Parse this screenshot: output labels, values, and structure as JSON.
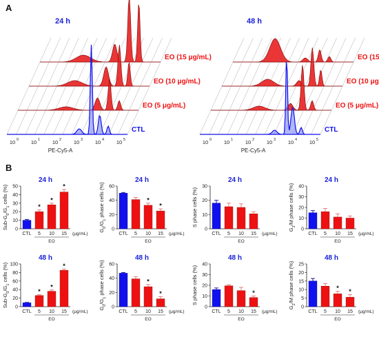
{
  "colors": {
    "ctl": "#1111ee",
    "eo": "#ee1111",
    "eo_fill": "#e82020",
    "dark": "#2a2a2a",
    "title_blue": "#1a22d8",
    "grid": "#aaaaaa"
  },
  "panels": {
    "a": "A",
    "b": "B"
  },
  "flow": {
    "xlabel": "PE-Cy5-A",
    "tick_labels": [
      "10",
      "10",
      "10",
      "10",
      "10",
      "10"
    ],
    "tick_exponents": [
      "0",
      "1",
      "2",
      "3",
      "4",
      "5"
    ],
    "left": {
      "time": "24 h",
      "labels": [
        "EO (15 μg/mL)",
        "EO (10 μg/mL)",
        "EO (5 μg/mL)",
        "CTL"
      ]
    },
    "right": {
      "time": "48 h",
      "labels": [
        "EO (15 μg/mL)",
        "EO (10 μg/mL)",
        "EO (5 μg/mL)",
        "CTL"
      ]
    }
  },
  "bar_common": {
    "categories": [
      "CTL",
      "5",
      "10",
      "15"
    ],
    "unit_label": "(μg/mL)",
    "group_label": "EO",
    "star": "*"
  },
  "chart_data": [
    {
      "type": "bar",
      "title": "24 h",
      "ylabel": "Sub-G0/G1 cells (%)",
      "ylabel_parts": [
        "Sub-G",
        "0",
        "/G",
        "1",
        " cells (%)"
      ],
      "ylim": [
        0,
        50
      ],
      "yticks": [
        "0",
        "10",
        "20",
        "30",
        "40",
        "50"
      ],
      "categories": [
        "CTL",
        "5",
        "10",
        "15"
      ],
      "values": [
        10,
        20,
        28,
        43
      ],
      "errors": [
        1,
        2,
        2,
        3
      ],
      "significant": [
        false,
        true,
        true,
        true
      ]
    },
    {
      "type": "bar",
      "title": "24 h",
      "ylabel": "G0/G1 phase cells (%)",
      "ylabel_parts": [
        "G",
        "0",
        "/G",
        "1",
        " phase cells (%)"
      ],
      "ylim": [
        0,
        60
      ],
      "yticks": [
        "0",
        "20",
        "40",
        "60"
      ],
      "categories": [
        "CTL",
        "5",
        "10",
        "15"
      ],
      "values": [
        50,
        41,
        33,
        25
      ],
      "errors": [
        1,
        3,
        3,
        3
      ],
      "significant": [
        false,
        false,
        true,
        true
      ]
    },
    {
      "type": "bar",
      "title": "24 h",
      "ylabel": "S phase cells (%)",
      "ylabel_parts": [
        "S phase cells (%)"
      ],
      "ylim": [
        0,
        30
      ],
      "yticks": [
        "0",
        "10",
        "20",
        "30"
      ],
      "categories": [
        "CTL",
        "5",
        "10",
        "15"
      ],
      "values": [
        18,
        15.5,
        15,
        10.5
      ],
      "errors": [
        2,
        2.5,
        2.5,
        1.5
      ],
      "significant": [
        false,
        false,
        false,
        false
      ]
    },
    {
      "type": "bar",
      "title": "24 h",
      "ylabel": "G2/M phase cells (%)",
      "ylabel_parts": [
        "G",
        "2",
        "/M phase cells (%)"
      ],
      "ylim": [
        0,
        40
      ],
      "yticks": [
        "0",
        "10",
        "20",
        "30",
        "40"
      ],
      "categories": [
        "CTL",
        "5",
        "10",
        "15"
      ],
      "values": [
        15,
        16,
        11,
        10
      ],
      "errors": [
        2,
        3,
        3,
        2
      ],
      "significant": [
        false,
        false,
        false,
        false
      ]
    },
    {
      "type": "bar",
      "title": "48 h",
      "ylabel": "Sub-G0/G1 cells (%)",
      "ylabel_parts": [
        "Sub-G",
        "0",
        "/G",
        "1",
        " cells (%)"
      ],
      "ylim": [
        0,
        100
      ],
      "yticks": [
        "0",
        "20",
        "40",
        "60",
        "80",
        "100"
      ],
      "categories": [
        "CTL",
        "5",
        "10",
        "15"
      ],
      "values": [
        9,
        26,
        36,
        85
      ],
      "errors": [
        1,
        2,
        3,
        3
      ],
      "significant": [
        false,
        true,
        true,
        true
      ]
    },
    {
      "type": "bar",
      "title": "48 h",
      "ylabel": "G0/G1 phase cells (%)",
      "ylabel_parts": [
        "G",
        "0",
        "/G",
        "1",
        " phase cells (%)"
      ],
      "ylim": [
        0,
        60
      ],
      "yticks": [
        "0",
        "20",
        "40",
        "60"
      ],
      "categories": [
        "CTL",
        "5",
        "10",
        "15"
      ],
      "values": [
        47,
        39,
        28,
        11
      ],
      "errors": [
        1,
        3,
        3,
        3
      ],
      "significant": [
        false,
        false,
        true,
        true
      ]
    },
    {
      "type": "bar",
      "title": "48 h",
      "ylabel": "S phase cells (%)",
      "ylabel_parts": [
        "S phase cells (%)"
      ],
      "ylim": [
        0,
        40
      ],
      "yticks": [
        "0",
        "10",
        "20",
        "30",
        "40"
      ],
      "categories": [
        "CTL",
        "5",
        "10",
        "15"
      ],
      "values": [
        16,
        19.5,
        15,
        8.5
      ],
      "errors": [
        1.5,
        1,
        3,
        1.5
      ],
      "significant": [
        false,
        false,
        false,
        true
      ]
    },
    {
      "type": "bar",
      "title": "48 h",
      "ylabel": "G2/M phase cells (%)",
      "ylabel_parts": [
        "G",
        "2",
        "/M phase cells (%)"
      ],
      "ylim": [
        0,
        25
      ],
      "yticks": [
        "0",
        "5",
        "10",
        "15",
        "20",
        "25"
      ],
      "categories": [
        "CTL",
        "5",
        "10",
        "15"
      ],
      "values": [
        15,
        12,
        7.5,
        5.5
      ],
      "errors": [
        1.5,
        1.5,
        1.5,
        1.5
      ],
      "significant": [
        false,
        false,
        true,
        true
      ]
    }
  ]
}
